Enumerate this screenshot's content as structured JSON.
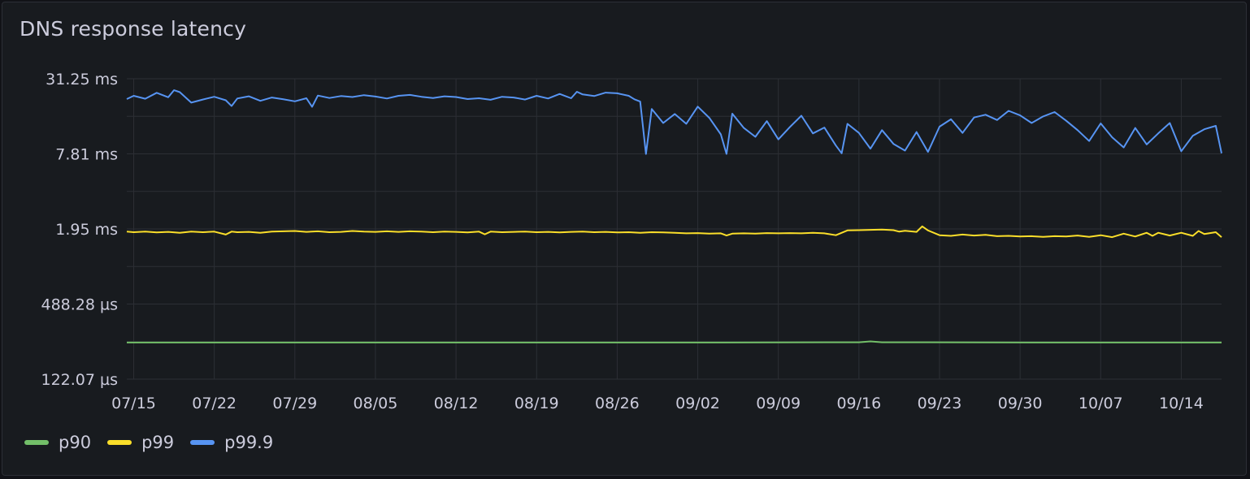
{
  "panel": {
    "title": "DNS response latency"
  },
  "chart_data": {
    "type": "line",
    "title": "DNS response latency",
    "y_scale": "log2",
    "y_unit": "ms",
    "y_ticks": [
      {
        "value": 31.25,
        "label": "31.25 ms"
      },
      {
        "value": 7.8125,
        "label": "7.81 ms"
      },
      {
        "value": 1.953,
        "label": "1.95 ms"
      },
      {
        "value": 0.48828,
        "label": "488.28 µs"
      },
      {
        "value": 0.12207,
        "label": "122.07 µs"
      }
    ],
    "ylim": [
      0.12207,
      31.25
    ],
    "x_ticks": [
      "07/15",
      "07/22",
      "07/29",
      "08/05",
      "08/12",
      "08/19",
      "08/26",
      "09/02",
      "09/09",
      "09/16",
      "09/23",
      "09/30",
      "10/07",
      "10/14"
    ],
    "x_range_days": [
      -0.6,
      94.5
    ],
    "grid": true,
    "legend_position": "bottom-left",
    "series": [
      {
        "name": "p90",
        "color": "#73bf69",
        "points": [
          [
            -0.6,
            0.24
          ],
          [
            10,
            0.24
          ],
          [
            30,
            0.24
          ],
          [
            50,
            0.24
          ],
          [
            63,
            0.241
          ],
          [
            64,
            0.245
          ],
          [
            65,
            0.241
          ],
          [
            80,
            0.24
          ],
          [
            94.5,
            0.24
          ]
        ]
      },
      {
        "name": "p99",
        "color": "#fade2a",
        "points": [
          [
            -0.6,
            1.86
          ],
          [
            0,
            1.84
          ],
          [
            1,
            1.86
          ],
          [
            2,
            1.83
          ],
          [
            3,
            1.85
          ],
          [
            4,
            1.82
          ],
          [
            5,
            1.86
          ],
          [
            6,
            1.84
          ],
          [
            7,
            1.86
          ],
          [
            8,
            1.76
          ],
          [
            8.5,
            1.86
          ],
          [
            9,
            1.84
          ],
          [
            10,
            1.85
          ],
          [
            11,
            1.82
          ],
          [
            12,
            1.86
          ],
          [
            14,
            1.88
          ],
          [
            15,
            1.85
          ],
          [
            16,
            1.87
          ],
          [
            17,
            1.84
          ],
          [
            18,
            1.85
          ],
          [
            19,
            1.88
          ],
          [
            20,
            1.86
          ],
          [
            21,
            1.85
          ],
          [
            22,
            1.87
          ],
          [
            23,
            1.85
          ],
          [
            24,
            1.87
          ],
          [
            25,
            1.86
          ],
          [
            26,
            1.84
          ],
          [
            27,
            1.86
          ],
          [
            28,
            1.85
          ],
          [
            29,
            1.83
          ],
          [
            30,
            1.86
          ],
          [
            30.5,
            1.77
          ],
          [
            31,
            1.86
          ],
          [
            32,
            1.84
          ],
          [
            33,
            1.85
          ],
          [
            34,
            1.86
          ],
          [
            35,
            1.84
          ],
          [
            36,
            1.85
          ],
          [
            37,
            1.83
          ],
          [
            38,
            1.85
          ],
          [
            39,
            1.86
          ],
          [
            40,
            1.84
          ],
          [
            41,
            1.85
          ],
          [
            42,
            1.83
          ],
          [
            43,
            1.84
          ],
          [
            44,
            1.82
          ],
          [
            45,
            1.84
          ],
          [
            46,
            1.83
          ],
          [
            47,
            1.82
          ],
          [
            48,
            1.8
          ],
          [
            49,
            1.81
          ],
          [
            50,
            1.79
          ],
          [
            51,
            1.8
          ],
          [
            51.5,
            1.73
          ],
          [
            52,
            1.79
          ],
          [
            53,
            1.8
          ],
          [
            54,
            1.79
          ],
          [
            55,
            1.81
          ],
          [
            56,
            1.8
          ],
          [
            57,
            1.81
          ],
          [
            58,
            1.8
          ],
          [
            59,
            1.82
          ],
          [
            60,
            1.8
          ],
          [
            61,
            1.74
          ],
          [
            62,
            1.9
          ],
          [
            63,
            1.91
          ],
          [
            64,
            1.92
          ],
          [
            65,
            1.93
          ],
          [
            66,
            1.91
          ],
          [
            66.5,
            1.86
          ],
          [
            67,
            1.89
          ],
          [
            68,
            1.85
          ],
          [
            68.5,
            2.05
          ],
          [
            69,
            1.9
          ],
          [
            70,
            1.74
          ],
          [
            71,
            1.72
          ],
          [
            72,
            1.76
          ],
          [
            73,
            1.73
          ],
          [
            74,
            1.75
          ],
          [
            75,
            1.71
          ],
          [
            76,
            1.72
          ],
          [
            77,
            1.7
          ],
          [
            78,
            1.71
          ],
          [
            79,
            1.69
          ],
          [
            80,
            1.71
          ],
          [
            81,
            1.7
          ],
          [
            82,
            1.73
          ],
          [
            83,
            1.69
          ],
          [
            84,
            1.74
          ],
          [
            85,
            1.68
          ],
          [
            86,
            1.79
          ],
          [
            87,
            1.7
          ],
          [
            88,
            1.82
          ],
          [
            88.5,
            1.72
          ],
          [
            89,
            1.82
          ],
          [
            90,
            1.73
          ],
          [
            91,
            1.82
          ],
          [
            92,
            1.72
          ],
          [
            92.5,
            1.88
          ],
          [
            93,
            1.78
          ],
          [
            94,
            1.84
          ],
          [
            94.5,
            1.68
          ]
        ]
      },
      {
        "name": "p99.9",
        "color": "#5794f2",
        "points": [
          [
            -0.6,
            21.5
          ],
          [
            0,
            22.8
          ],
          [
            1,
            21.6
          ],
          [
            2,
            24.1
          ],
          [
            3,
            22.2
          ],
          [
            3.5,
            25.3
          ],
          [
            4,
            24.4
          ],
          [
            5,
            20.1
          ],
          [
            6,
            21.3
          ],
          [
            7,
            22.4
          ],
          [
            8,
            21.0
          ],
          [
            8.5,
            18.9
          ],
          [
            9,
            21.7
          ],
          [
            10,
            22.6
          ],
          [
            11,
            20.8
          ],
          [
            12,
            22.1
          ],
          [
            13,
            21.4
          ],
          [
            14,
            20.6
          ],
          [
            15,
            21.8
          ],
          [
            15.5,
            18.6
          ],
          [
            16,
            22.9
          ],
          [
            17,
            21.9
          ],
          [
            18,
            22.7
          ],
          [
            19,
            22.3
          ],
          [
            20,
            23.1
          ],
          [
            21,
            22.5
          ],
          [
            22,
            21.7
          ],
          [
            23,
            22.8
          ],
          [
            24,
            23.2
          ],
          [
            25,
            22.4
          ],
          [
            26,
            21.9
          ],
          [
            27,
            22.6
          ],
          [
            28,
            22.3
          ],
          [
            29,
            21.5
          ],
          [
            30,
            21.8
          ],
          [
            31,
            21.2
          ],
          [
            32,
            22.4
          ],
          [
            33,
            22.1
          ],
          [
            34,
            21.3
          ],
          [
            35,
            22.8
          ],
          [
            36,
            21.7
          ],
          [
            37,
            23.6
          ],
          [
            38,
            21.8
          ],
          [
            38.5,
            24.6
          ],
          [
            39,
            23.4
          ],
          [
            40,
            22.7
          ],
          [
            41,
            24.2
          ],
          [
            42,
            23.9
          ],
          [
            43,
            22.8
          ],
          [
            43.5,
            21.4
          ],
          [
            44,
            20.5
          ],
          [
            44.5,
            7.8
          ],
          [
            45,
            17.9
          ],
          [
            46,
            13.8
          ],
          [
            47,
            16.3
          ],
          [
            48,
            13.6
          ],
          [
            49,
            18.7
          ],
          [
            50,
            15.2
          ],
          [
            51,
            11.2
          ],
          [
            51.5,
            7.8
          ],
          [
            52,
            16.4
          ],
          [
            53,
            12.6
          ],
          [
            54,
            10.7
          ],
          [
            55,
            14.3
          ],
          [
            56,
            10.2
          ],
          [
            57,
            12.8
          ],
          [
            58,
            15.8
          ],
          [
            59,
            11.4
          ],
          [
            60,
            12.7
          ],
          [
            61,
            9.1
          ],
          [
            61.5,
            7.9
          ],
          [
            62,
            13.6
          ],
          [
            63,
            11.5
          ],
          [
            64,
            8.6
          ],
          [
            65,
            12.1
          ],
          [
            66,
            9.4
          ],
          [
            67,
            8.3
          ],
          [
            68,
            11.7
          ],
          [
            69,
            8.1
          ],
          [
            70,
            12.9
          ],
          [
            71,
            14.8
          ],
          [
            72,
            11.5
          ],
          [
            73,
            15.3
          ],
          [
            74,
            16.1
          ],
          [
            75,
            14.6
          ],
          [
            76,
            17.3
          ],
          [
            77,
            15.9
          ],
          [
            78,
            13.8
          ],
          [
            79,
            15.6
          ],
          [
            80,
            16.9
          ],
          [
            81,
            14.4
          ],
          [
            82,
            12.1
          ],
          [
            83,
            9.9
          ],
          [
            84,
            13.7
          ],
          [
            85,
            10.6
          ],
          [
            86,
            8.8
          ],
          [
            87,
            12.6
          ],
          [
            88,
            9.3
          ],
          [
            89,
            11.4
          ],
          [
            90,
            13.8
          ],
          [
            91,
            8.2
          ],
          [
            92,
            10.9
          ],
          [
            93,
            12.3
          ],
          [
            94,
            13.1
          ],
          [
            94.5,
            7.9
          ]
        ]
      }
    ]
  },
  "legend": {
    "items": [
      {
        "name": "p90",
        "color": "#73bf69"
      },
      {
        "name": "p99",
        "color": "#fade2a"
      },
      {
        "name": "p99.9",
        "color": "#5794f2"
      }
    ]
  }
}
